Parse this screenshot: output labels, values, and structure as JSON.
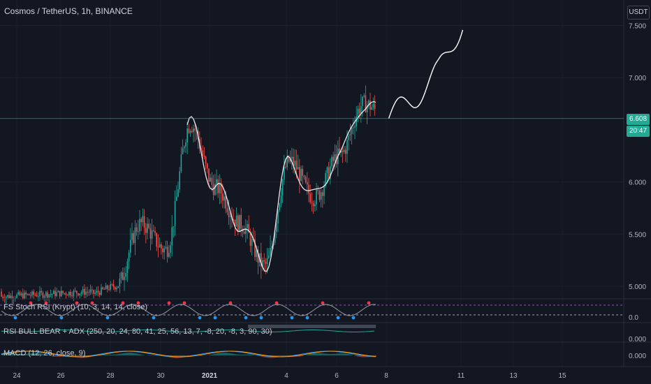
{
  "title": "Cosmos / TetherUS, 1h, BINANCE",
  "currency_button": "USDT",
  "last_price_tag": "6.608",
  "countdown_tag": "20:47",
  "price_axis": [
    {
      "label": "7.500",
      "value": 7.5
    },
    {
      "label": "7.000",
      "value": 7.0
    },
    {
      "label": "6.000",
      "value": 6.0
    },
    {
      "label": "5.500",
      "value": 5.5
    },
    {
      "label": "5.000",
      "value": 5.0
    }
  ],
  "time_axis": [
    "24",
    "26",
    "28",
    "30",
    "2021",
    "4",
    "6",
    "8",
    "11",
    "13",
    "15"
  ],
  "indicators": {
    "stoch_rsi": {
      "label": "FS Stoch RSI (Krypt) (10, 3, 14, 14, close)",
      "axis_label": "0.0"
    },
    "rsi_adx": {
      "label": "RSI BULL BEAR + ADX (250, 20, 24, 80, 41, 25, 56, 13, 7, -8, 20, -8, 3, 90, 30)",
      "axis_label": "0.000"
    },
    "macd": {
      "label": "MACD (12, 26, close, 9)",
      "axis_label": "0.000"
    }
  },
  "colors": {
    "background": "#131722",
    "bullish": "#26a69a",
    "bearish": "#ef5350",
    "projection": "#ffffff",
    "last_price": "#22ab94"
  },
  "chart_data": {
    "type": "candlestick",
    "symbol": "Cosmos / TetherUS",
    "interval": "1h",
    "exchange": "BINANCE",
    "ylim": [
      4.9,
      7.6
    ],
    "last_price": 6.608,
    "price_path": [
      {
        "date": "Dec 27",
        "price": 4.93
      },
      {
        "date": "Dec 28",
        "price": 5.0
      },
      {
        "date": "Dec 29",
        "price": 5.6
      },
      {
        "date": "Dec 30",
        "price": 5.35
      },
      {
        "date": "Dec 31",
        "price": 6.55
      },
      {
        "date": "Jan 1",
        "price": 5.95
      },
      {
        "date": "Jan 2",
        "price": 5.6
      },
      {
        "date": "Jan 3",
        "price": 5.2
      },
      {
        "date": "Jan 4",
        "price": 6.2
      },
      {
        "date": "Jan 5",
        "price": 5.85
      },
      {
        "date": "Jan 6",
        "price": 6.25
      },
      {
        "date": "Jan 7",
        "price": 6.75
      },
      {
        "date": "Jan 8",
        "price": 6.608
      }
    ],
    "projection": [
      {
        "date": "Jan 8",
        "price": 6.608
      },
      {
        "date": "Jan 9",
        "price": 6.8
      },
      {
        "date": "Jan 10",
        "price": 7.05
      },
      {
        "date": "Jan 11",
        "price": 7.55
      }
    ]
  }
}
